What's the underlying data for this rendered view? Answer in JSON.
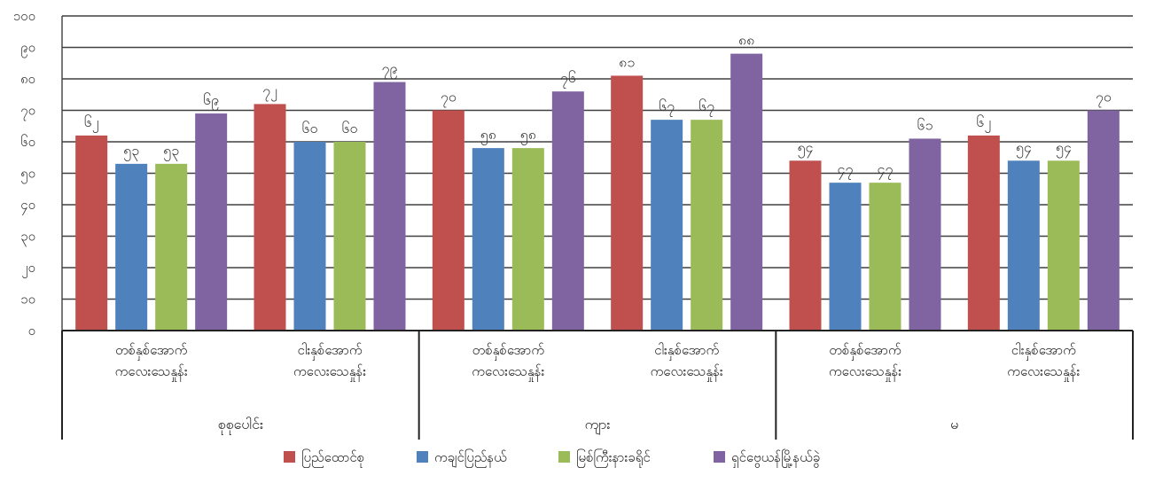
{
  "chart_data": {
    "type": "bar",
    "yticks": [
      "၀",
      "၁၀",
      "၂၀",
      "၃၀",
      "၄၀",
      "၅၀",
      "၆၀",
      "၇၀",
      "၈၀",
      "၉၀",
      "၁၀၀"
    ],
    "ylim": [
      0,
      100
    ],
    "grid": true,
    "legend_position": "bottom",
    "groups": [
      {
        "label": "စုစုပေါင်း",
        "categories": [
          "တစ်နှစ်အောက်\nကလေးသေနှုန်း",
          "ငါးနှစ်အောက်\nကလေးသေနှုန်း"
        ]
      },
      {
        "label": "ကျား",
        "categories": [
          "တစ်နှစ်အောက်\nကလေးသေနှုန်း",
          "ငါးနှစ်အောက်\nကလေးသေနှုန်း"
        ]
      },
      {
        "label": "မ",
        "categories": [
          "တစ်နှစ်အောက်\nကလေးသေနှုန်း",
          "ငါးနှစ်အောက်\nကလေးသေနှုန်း"
        ]
      }
    ],
    "series": [
      {
        "name": "ပြည်ထောင်စု",
        "color": "#c0504d",
        "values": [
          62,
          72,
          70,
          81,
          54,
          62
        ],
        "labels": [
          "၆၂",
          "၇၂",
          "၇၀",
          "၈၁",
          "၅၄",
          "၆၂"
        ]
      },
      {
        "name": "ကချင်ပြည်နယ်",
        "color": "#4f81bd",
        "values": [
          53,
          60,
          58,
          67,
          47,
          54
        ],
        "labels": [
          "၅၃",
          "၆၀",
          "၅၈",
          "၆၇",
          "၄၇",
          "၅၄"
        ]
      },
      {
        "name": "မြစ်ကြီးနားခရိုင်",
        "color": "#9bbb59",
        "values": [
          53,
          60,
          58,
          67,
          47,
          54
        ],
        "labels": [
          "၅၃",
          "၆၀",
          "၅၈",
          "၆၇",
          "၄၇",
          "၅၄"
        ]
      },
      {
        "name": "ရှင်ဗွေယန်မြို့နယ်ခွဲ",
        "color": "#8064a2",
        "values": [
          69,
          79,
          76,
          88,
          61,
          70
        ],
        "labels": [
          "၆၉",
          "၇၉",
          "၇၆",
          "၈၈",
          "၆၁",
          "၇၀"
        ]
      }
    ]
  }
}
